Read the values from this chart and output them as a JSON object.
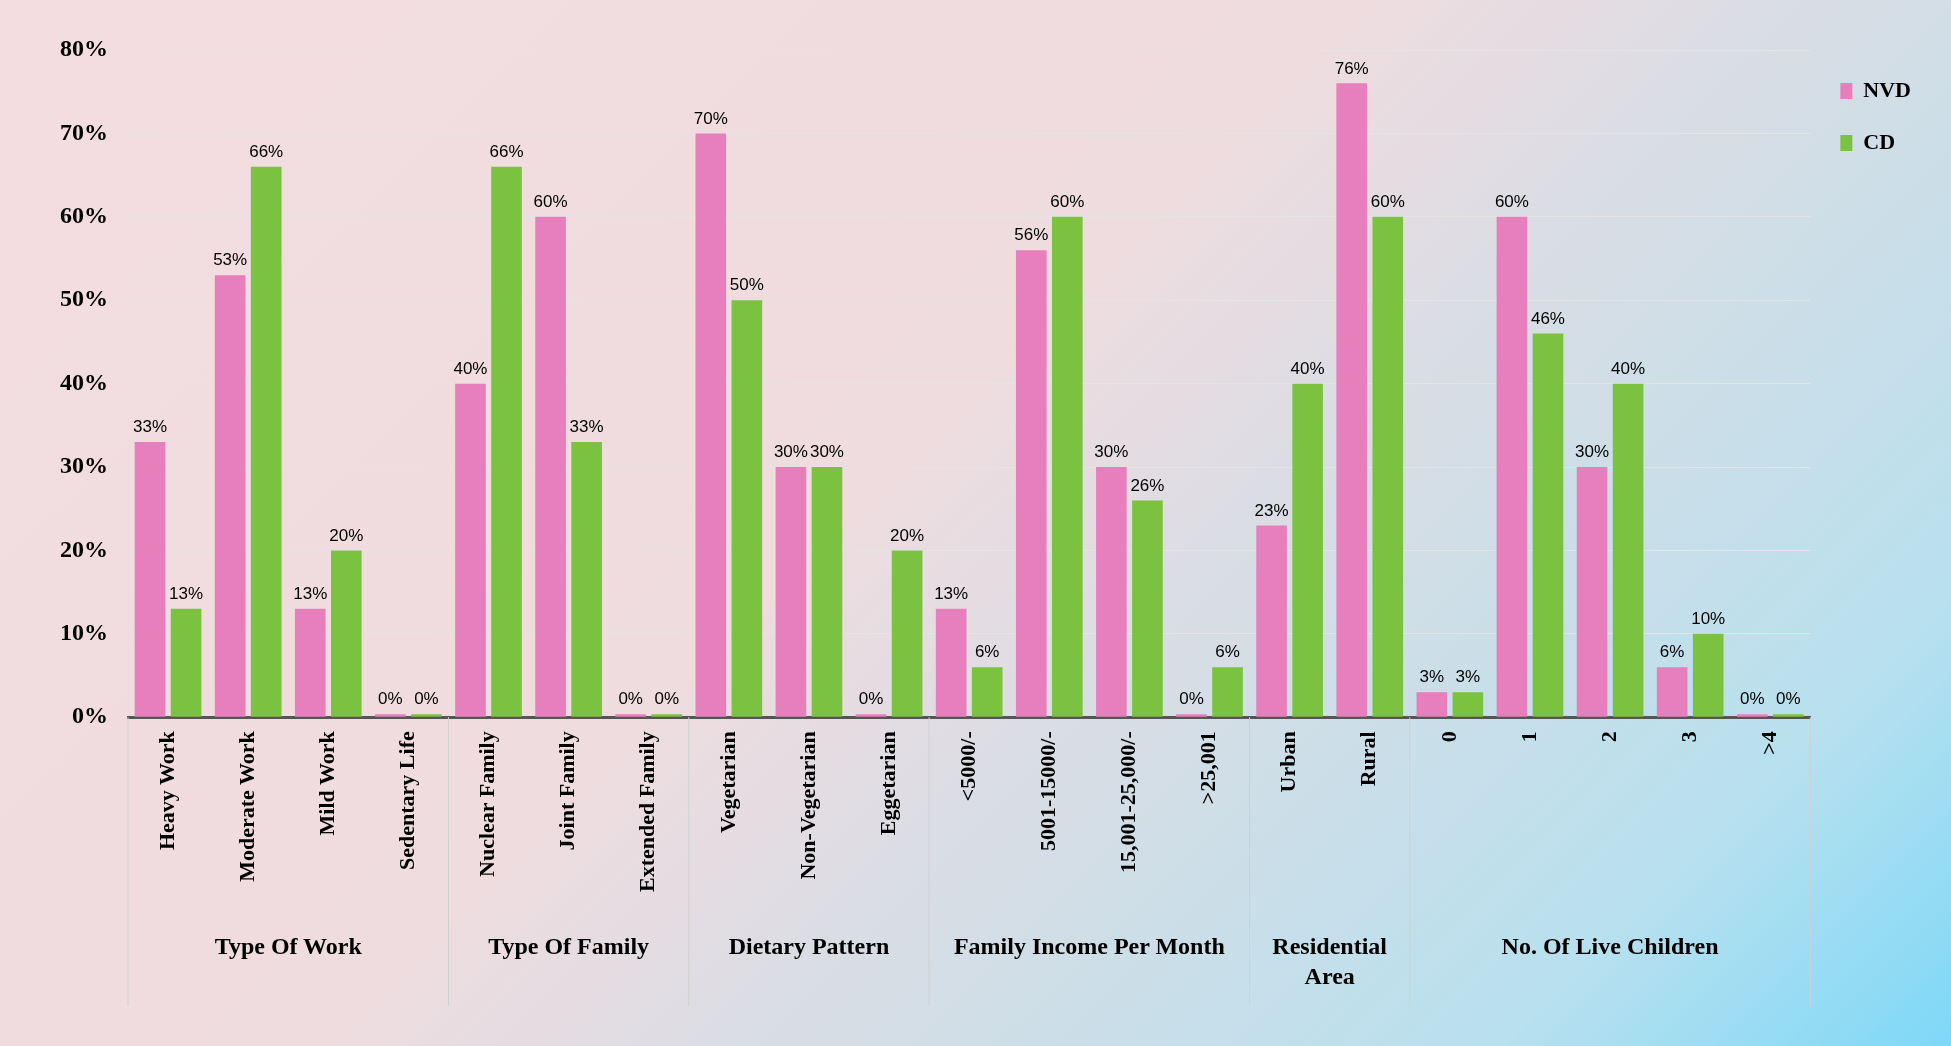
{
  "chart_data": {
    "type": "bar",
    "categories": [
      "Heavy Work",
      "Moderate Work",
      "Mild Work",
      "Sedentary Life",
      "Nuclear Family",
      "Joint Family",
      "Extended Family",
      "Vegetarian",
      "Non-Vegetarian",
      "Eggetarian",
      "<5000/-",
      "5001-15000/-",
      "15,001-25,000/-",
      ">25,001",
      "Urban",
      "Rural",
      "0",
      "1",
      "2",
      "3",
      ">4"
    ],
    "series": [
      {
        "name": "NVD",
        "color": "#e77fbd",
        "values": [
          33,
          53,
          13,
          0,
          40,
          60,
          0,
          70,
          30,
          0,
          13,
          56,
          30,
          0,
          23,
          76,
          3,
          60,
          30,
          6,
          0
        ],
        "value_labels": [
          "33%",
          "53%",
          "13%",
          "0%",
          "40%",
          "60%",
          "0%",
          "70%",
          "30%",
          "0%",
          "13%",
          "56%",
          "30%",
          "0%",
          "23%",
          "76%",
          "3%",
          "60%",
          "30%",
          "6%",
          "0%"
        ]
      },
      {
        "name": "CD",
        "color": "#7cc241",
        "values": [
          13,
          66,
          20,
          0,
          66,
          33,
          0,
          50,
          30,
          20,
          6,
          60,
          26,
          6,
          40,
          60,
          3,
          46,
          40,
          10,
          0
        ],
        "value_labels": [
          "13%",
          "66%",
          "20%",
          "0%",
          "66%",
          "33%",
          "0%",
          "50%",
          "30%",
          "20%",
          "6%",
          "60%",
          "26%",
          "6%",
          "40%",
          "60%",
          "3%",
          "46%",
          "40%",
          "10%",
          "0%"
        ]
      }
    ],
    "ylim": [
      0,
      80
    ],
    "yticks": [
      {
        "value": 0,
        "label": "0%"
      },
      {
        "value": 10,
        "label": "10%"
      },
      {
        "value": 20,
        "label": "20%"
      },
      {
        "value": 30,
        "label": "30%"
      },
      {
        "value": 40,
        "label": "40%"
      },
      {
        "value": 50,
        "label": "50%"
      },
      {
        "value": 60,
        "label": "60%"
      },
      {
        "value": 70,
        "label": "70%"
      },
      {
        "value": 80,
        "label": "80%"
      }
    ],
    "grid": "y",
    "legend": "top right",
    "annotations": [
      "Type Of Work",
      "Type Of Family",
      "Dietary Pattern",
      "Family Income Per Month",
      "Residential Area",
      "No. Of Live Children"
    ]
  }
}
